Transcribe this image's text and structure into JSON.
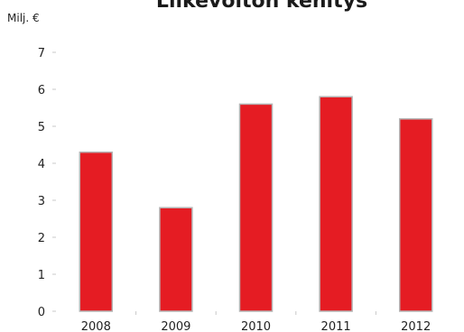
{
  "chart_data": {
    "type": "bar",
    "title": "Liikevoiton kehitys",
    "ylabel": "Milj. €",
    "xlabel": "",
    "categories": [
      "2008",
      "2009",
      "2010",
      "2011",
      "2012"
    ],
    "values": [
      4.3,
      2.8,
      5.6,
      5.8,
      5.2
    ],
    "ylim": [
      0,
      7
    ],
    "yticks": [
      "0",
      "1",
      "2",
      "3",
      "4",
      "5",
      "6",
      "7"
    ],
    "grid": false,
    "bar_color": "#e51c23",
    "bar_edge_color": "#b5b5b5"
  }
}
